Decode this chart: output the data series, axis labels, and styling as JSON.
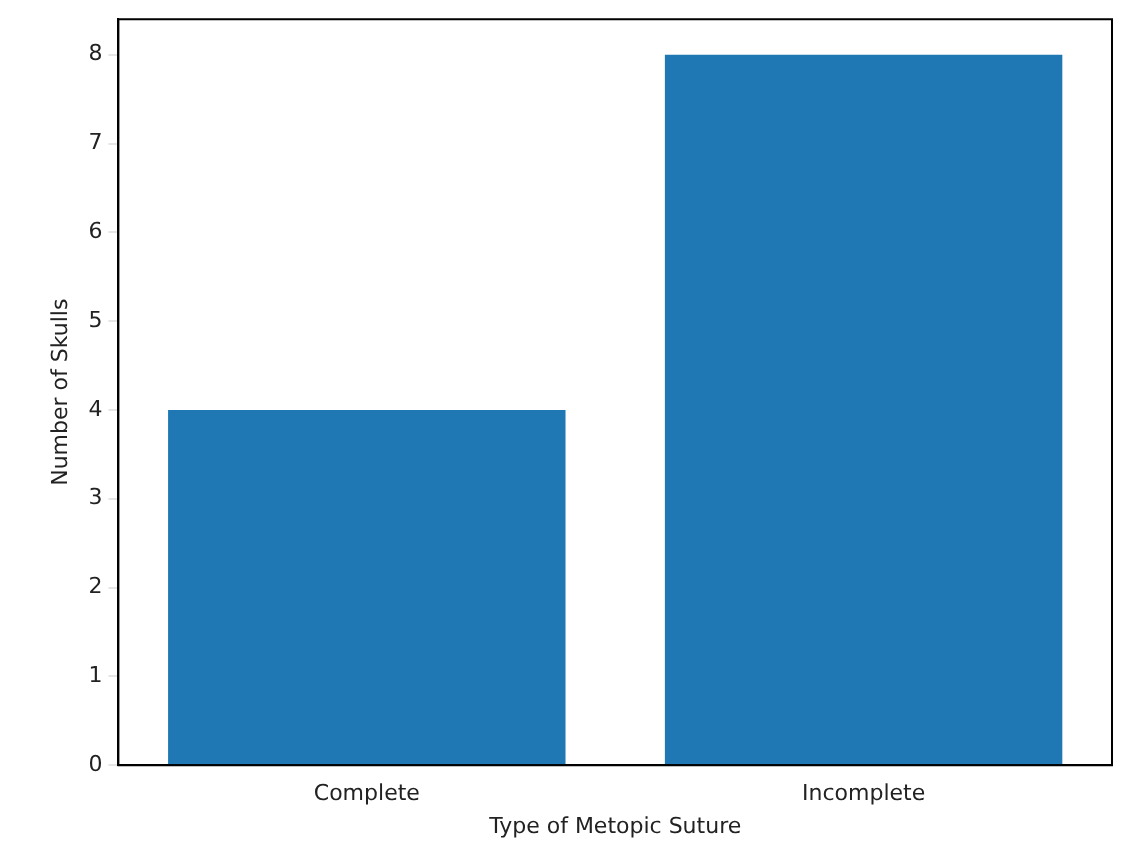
{
  "chart_data": {
    "type": "bar",
    "xlabel": "Type of Metopic Suture",
    "ylabel": "Number of Skulls",
    "categories": [
      "Complete",
      "Incomplete"
    ],
    "values": [
      4,
      8
    ],
    "color": "#1f77b4",
    "ylim": [
      0,
      8.4
    ],
    "yticks": [
      0,
      1,
      2,
      3,
      4,
      5,
      6,
      7,
      8
    ],
    "grid": false,
    "legend": false
  }
}
